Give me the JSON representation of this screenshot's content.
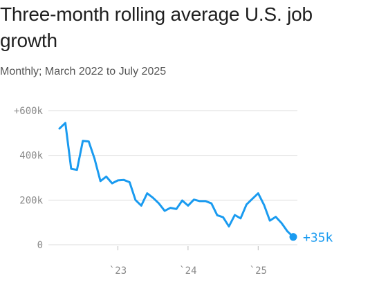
{
  "title": "Three-month rolling average U.S. job growth",
  "subtitle": "Monthly; March 2022 to July 2025",
  "chart_data": {
    "type": "line",
    "title": "Three-month rolling average U.S. job growth",
    "subtitle": "Monthly; March 2022 to July 2025",
    "xlabel": "",
    "ylabel": "",
    "ylim": [
      0,
      600
    ],
    "y_ticks": [
      0,
      200,
      400,
      600
    ],
    "y_tick_labels": [
      "0",
      "200k",
      "400k",
      "+600k"
    ],
    "x_ticks": [
      "2023-01",
      "2024-01",
      "2025-01"
    ],
    "x_tick_labels": [
      "`23",
      "`24",
      "`25"
    ],
    "grid": true,
    "line_color": "#1a9bf0",
    "grid_color": "#dddddd",
    "end_label": "+35k",
    "x": [
      "2022-03",
      "2022-04",
      "2022-05",
      "2022-06",
      "2022-07",
      "2022-08",
      "2022-09",
      "2022-10",
      "2022-11",
      "2022-12",
      "2023-01",
      "2023-02",
      "2023-03",
      "2023-04",
      "2023-05",
      "2023-06",
      "2023-07",
      "2023-08",
      "2023-09",
      "2023-10",
      "2023-11",
      "2023-12",
      "2024-01",
      "2024-02",
      "2024-03",
      "2024-04",
      "2024-05",
      "2024-06",
      "2024-07",
      "2024-08",
      "2024-09",
      "2024-10",
      "2024-11",
      "2024-12",
      "2025-01",
      "2025-02",
      "2025-03",
      "2025-04",
      "2025-05",
      "2025-06",
      "2025-07"
    ],
    "series": [
      {
        "values": [
          520,
          545,
          340,
          335,
          465,
          462,
          385,
          285,
          305,
          275,
          288,
          290,
          280,
          200,
          175,
          230,
          210,
          185,
          152,
          165,
          160,
          198,
          175,
          202,
          195,
          195,
          185,
          132,
          123,
          82,
          133,
          118,
          180,
          205,
          230,
          178,
          108,
          125,
          97,
          60,
          35
        ]
      }
    ]
  }
}
